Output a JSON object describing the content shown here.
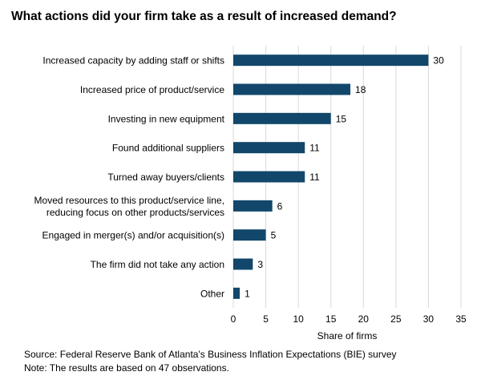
{
  "chart_data": {
    "type": "bar",
    "orientation": "horizontal",
    "title": "What actions did your firm take as a result of increased demand?",
    "categories": [
      "Increased capacity by adding staff or shifts",
      "Increased price of product/service",
      "Investing in new equipment",
      "Found additional suppliers",
      "Turned away buyers/clients",
      "Moved resources to this product/service line,\nreducing focus on other products/services",
      "Engaged in merger(s) and/or acquisition(s)",
      "The firm did not take any action",
      "Other"
    ],
    "values": [
      30,
      18,
      15,
      11,
      11,
      6,
      5,
      3,
      1
    ],
    "xlabel": "Share of firms",
    "ylabel": "",
    "xlim": [
      0,
      35
    ],
    "xticks": [
      0,
      5,
      10,
      15,
      20,
      25,
      30,
      35
    ],
    "grid": "vertical",
    "data_labels": true,
    "bar_color": "#12476b",
    "grid_color": "#d9d9d9"
  },
  "footer": {
    "source": "Source: Federal Reserve Bank of Atlanta's Business Inflation Expectations (BIE) survey",
    "note": "Note: The results are based on 47 observations."
  }
}
